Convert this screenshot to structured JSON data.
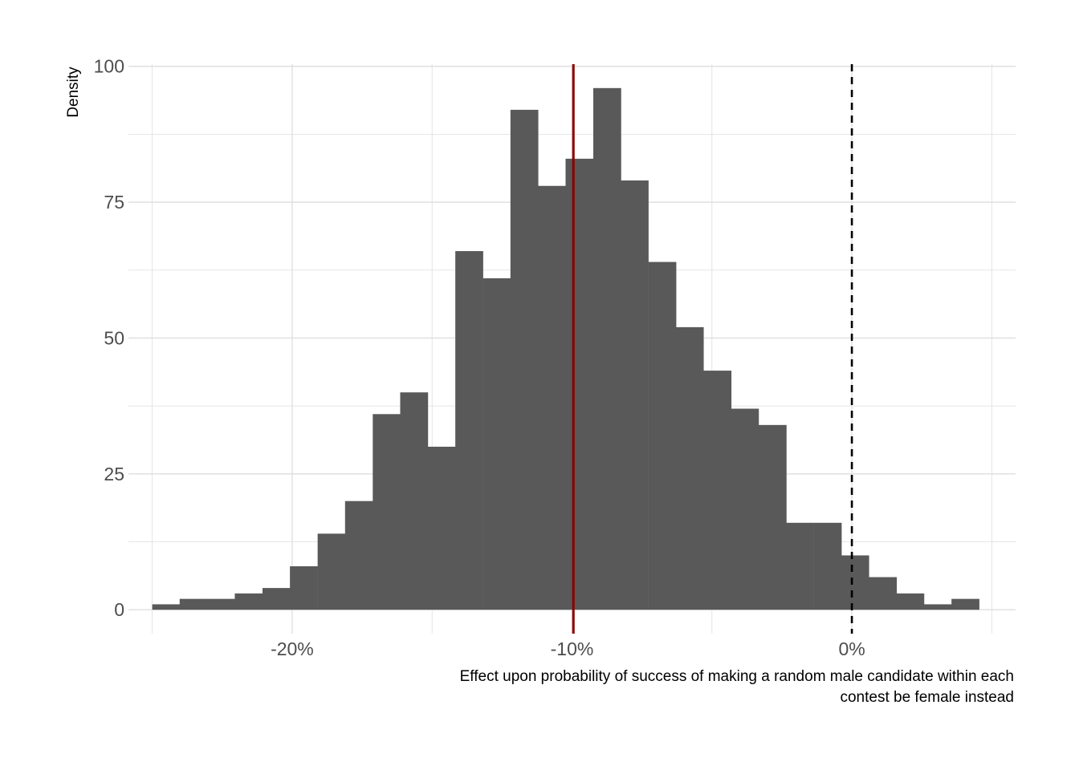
{
  "chart_data": {
    "type": "bar",
    "subtype": "histogram",
    "title": "",
    "xlabel_lines": [
      "Effect upon probability of success of making a random male candidate within each",
      "contest be female instead"
    ],
    "ylabel": "Density",
    "xlim": [
      -0.2585,
      0.0585
    ],
    "ylim": [
      -4.4,
      100.4
    ],
    "x_ticks": [
      -0.2,
      -0.1,
      0.0
    ],
    "x_tick_labels": [
      "-20%",
      "-10%",
      "0%"
    ],
    "x_minor_ticks": [
      -0.25,
      -0.15,
      -0.05,
      0.05
    ],
    "y_ticks": [
      0,
      25,
      50,
      75,
      100
    ],
    "y_tick_labels": [
      "0",
      "25",
      "50",
      "75",
      "100"
    ],
    "y_minor_ticks": [
      12.5,
      37.5,
      62.5,
      87.5
    ],
    "grid": true,
    "legend": "none",
    "bin_width": 0.00985,
    "bins": [
      {
        "x0": -0.25,
        "density": 1
      },
      {
        "x0": -0.2402,
        "density": 2
      },
      {
        "x0": -0.2303,
        "density": 2
      },
      {
        "x0": -0.2205,
        "density": 3
      },
      {
        "x0": -0.2106,
        "density": 4
      },
      {
        "x0": -0.2008,
        "density": 8
      },
      {
        "x0": -0.1909,
        "density": 14
      },
      {
        "x0": -0.1811,
        "density": 20
      },
      {
        "x0": -0.1712,
        "density": 36
      },
      {
        "x0": -0.1614,
        "density": 40
      },
      {
        "x0": -0.1515,
        "density": 30
      },
      {
        "x0": -0.1417,
        "density": 66
      },
      {
        "x0": -0.1318,
        "density": 61
      },
      {
        "x0": -0.122,
        "density": 92
      },
      {
        "x0": -0.1121,
        "density": 78
      },
      {
        "x0": -0.1023,
        "density": 83
      },
      {
        "x0": -0.0924,
        "density": 96
      },
      {
        "x0": -0.0826,
        "density": 79
      },
      {
        "x0": -0.0727,
        "density": 64
      },
      {
        "x0": -0.0629,
        "density": 52
      },
      {
        "x0": -0.053,
        "density": 44
      },
      {
        "x0": -0.0432,
        "density": 37
      },
      {
        "x0": -0.0333,
        "density": 34
      },
      {
        "x0": -0.0235,
        "density": 16
      },
      {
        "x0": -0.0136,
        "density": 16
      },
      {
        "x0": -0.0038,
        "density": 10
      },
      {
        "x0": 0.0061,
        "density": 6
      },
      {
        "x0": 0.0159,
        "density": 3
      },
      {
        "x0": 0.0258,
        "density": 1
      },
      {
        "x0": 0.0356,
        "density": 2
      }
    ],
    "reference_lines": [
      {
        "kind": "mean",
        "x": -0.0995,
        "color": "#8b0000",
        "style": "solid"
      },
      {
        "kind": "zero",
        "x": 0.0,
        "color": "#000000",
        "style": "dashed"
      }
    ],
    "bar_color": "#595959",
    "grid_color": "#dedede"
  }
}
